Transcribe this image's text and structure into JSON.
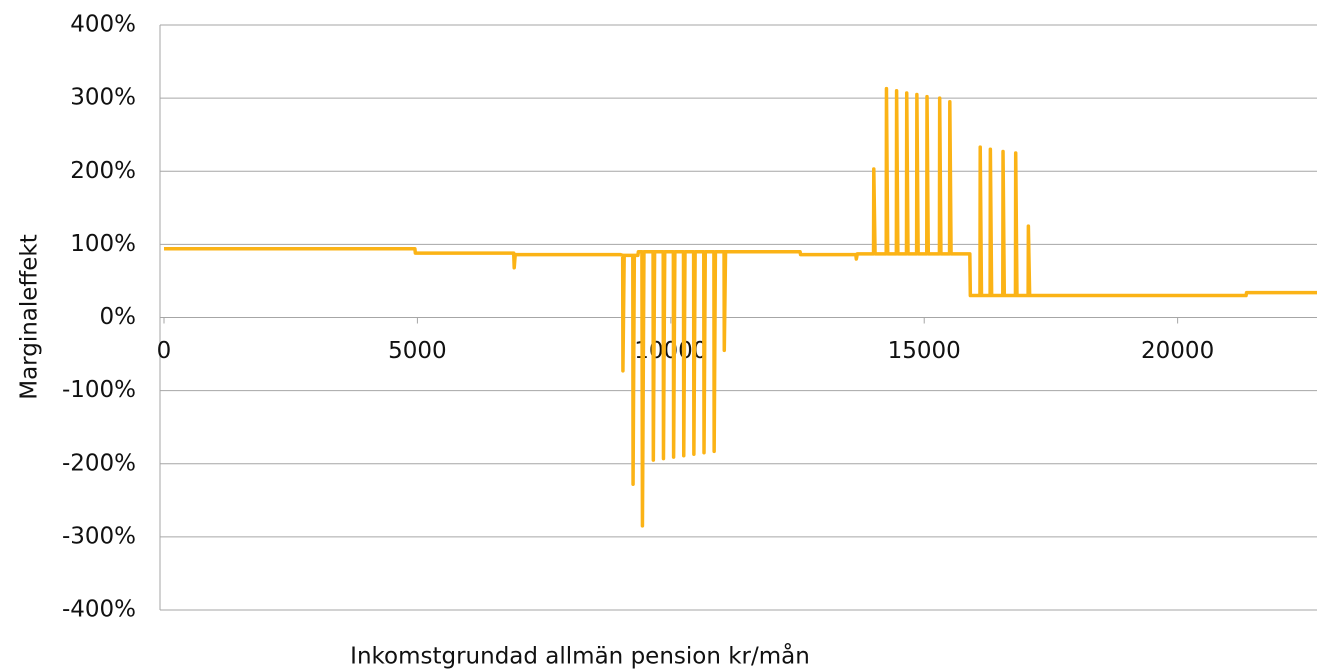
{
  "chart_data": {
    "type": "line",
    "x_label": "Inkomstgrundad allmän pension kr/mån",
    "y_label": "Marginaleffekt",
    "xlim": [
      0,
      22750
    ],
    "xticks": [
      0,
      5000,
      10000,
      15000,
      20000
    ],
    "ylim": [
      -400,
      400
    ],
    "yticks": [
      {
        "value": 400,
        "label": "400%"
      },
      {
        "value": 300,
        "label": "300%"
      },
      {
        "value": 200,
        "label": "200%"
      },
      {
        "value": 100,
        "label": "100%"
      },
      {
        "value": 0,
        "label": "0%"
      },
      {
        "value": -100,
        "label": "-100%"
      },
      {
        "value": -200,
        "label": "-200%"
      },
      {
        "value": -300,
        "label": "-300%"
      },
      {
        "value": -400,
        "label": "-400%"
      }
    ],
    "grid": true,
    "color": "#fbb316",
    "x": [
      0,
      4950,
      4960,
      6900,
      6910,
      6930,
      9000,
      9050,
      9055,
      9080,
      9250,
      9255,
      9280,
      9350,
      9360,
      9430,
      9440,
      9470,
      9650,
      9655,
      9680,
      9850,
      9855,
      9880,
      10050,
      10055,
      10080,
      10250,
      10255,
      10280,
      10450,
      10455,
      10480,
      10650,
      10655,
      10680,
      10850,
      10855,
      10880,
      11050,
      11055,
      11080,
      12550,
      12560,
      13650,
      13660,
      13680,
      14000,
      14005,
      14030,
      14250,
      14255,
      14280,
      14450,
      14455,
      14480,
      14650,
      14655,
      14680,
      14850,
      14855,
      14880,
      15050,
      15055,
      15080,
      15300,
      15305,
      15330,
      15500,
      15505,
      15530,
      15900,
      15910,
      16100,
      16105,
      16130,
      16300,
      16305,
      16330,
      16550,
      16555,
      16580,
      16800,
      16805,
      16830,
      17050,
      17055,
      17080,
      21350,
      21360,
      22750
    ],
    "values": [
      94,
      94,
      88,
      88,
      68,
      86,
      86,
      85,
      -73,
      85,
      85,
      -228,
      85,
      85,
      90,
      90,
      -285,
      90,
      90,
      -195,
      90,
      90,
      -193,
      90,
      90,
      -191,
      90,
      90,
      -189,
      90,
      90,
      -187,
      90,
      90,
      -185,
      90,
      90,
      -183,
      90,
      90,
      -45,
      90,
      90,
      86,
      86,
      80,
      87,
      87,
      203,
      87,
      87,
      313,
      87,
      87,
      310,
      87,
      87,
      307,
      87,
      87,
      305,
      87,
      87,
      302,
      87,
      87,
      300,
      87,
      87,
      295,
      87,
      87,
      30,
      30,
      233,
      30,
      30,
      230,
      30,
      30,
      227,
      30,
      30,
      225,
      30,
      30,
      125,
      30,
      30,
      34,
      34
    ]
  }
}
